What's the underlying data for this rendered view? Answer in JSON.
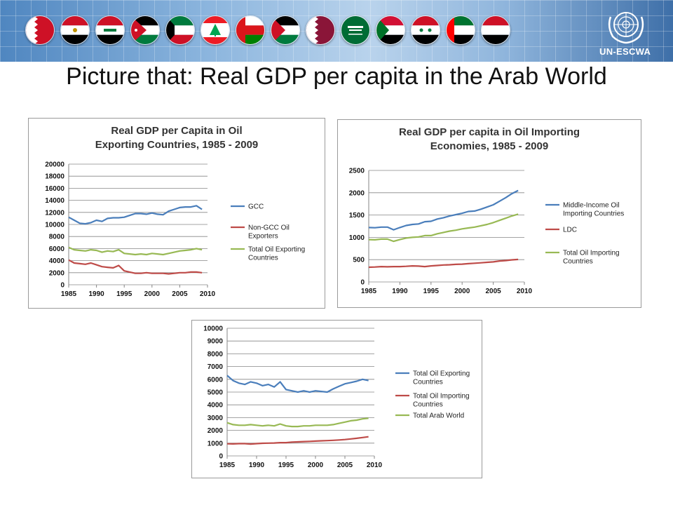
{
  "header": {
    "flags": [
      {
        "country": "Bahrain",
        "icon": "bahrain-flag-icon"
      },
      {
        "country": "Egypt",
        "icon": "egypt-flag-icon"
      },
      {
        "country": "Iraq",
        "icon": "iraq-flag-icon"
      },
      {
        "country": "Jordan",
        "icon": "jordan-flag-icon"
      },
      {
        "country": "Kuwait",
        "icon": "kuwait-flag-icon"
      },
      {
        "country": "Lebanon",
        "icon": "lebanon-flag-icon"
      },
      {
        "country": "Oman",
        "icon": "oman-flag-icon"
      },
      {
        "country": "Palestine",
        "icon": "palestine-flag-icon"
      },
      {
        "country": "Qatar",
        "icon": "qatar-flag-icon"
      },
      {
        "country": "Saudi Arabia",
        "icon": "saudi-arabia-flag-icon"
      },
      {
        "country": "Sudan",
        "icon": "sudan-flag-icon"
      },
      {
        "country": "Syria",
        "icon": "syria-flag-icon"
      },
      {
        "country": "UAE",
        "icon": "uae-flag-icon"
      },
      {
        "country": "Yemen",
        "icon": "yemen-flag-icon"
      }
    ],
    "org_label": "UN-ESCWA",
    "org_icon": "un-emblem-icon"
  },
  "slide": {
    "title": "Picture that: Real GDP per capita in the Arab World"
  },
  "colors": {
    "blue": "#4a7ebb",
    "red": "#be4b48",
    "green": "#98b954"
  },
  "chart_data": [
    {
      "type": "line",
      "title": [
        "Real GDP per Capita in Oil",
        "Exporting Countries, 1985 - 2009"
      ],
      "ylim": [
        0,
        20000
      ],
      "yticks": [
        0,
        2000,
        4000,
        6000,
        8000,
        10000,
        12000,
        14000,
        16000,
        18000,
        20000
      ],
      "xlim": [
        1985,
        2010
      ],
      "xticks": [
        1985,
        1990,
        1995,
        2000,
        2005,
        2010
      ],
      "grid": true,
      "legend_position": "right",
      "x": [
        1985,
        1986,
        1987,
        1988,
        1989,
        1990,
        1991,
        1992,
        1993,
        1994,
        1995,
        1996,
        1997,
        1998,
        1999,
        2000,
        2001,
        2002,
        2003,
        2004,
        2005,
        2006,
        2007,
        2008,
        2009
      ],
      "series": [
        {
          "name": "GCC",
          "color": "#4a7ebb",
          "values": [
            11200,
            10700,
            10200,
            10100,
            10300,
            10700,
            10500,
            11000,
            11100,
            11100,
            11200,
            11500,
            11800,
            11800,
            11700,
            11900,
            11700,
            11600,
            12200,
            12500,
            12800,
            12900,
            12900,
            13100,
            12500
          ]
        },
        {
          "name": "Non-GCC Oil Exporters",
          "color": "#be4b48",
          "values": [
            4100,
            3600,
            3500,
            3400,
            3600,
            3300,
            3000,
            2900,
            2800,
            3200,
            2300,
            2100,
            1900,
            1900,
            2000,
            1900,
            1900,
            1900,
            1800,
            1900,
            2000,
            2000,
            2100,
            2100,
            2000
          ]
        },
        {
          "name": "Total Oil Exporting Countries",
          "color": "#98b954",
          "values": [
            6200,
            5800,
            5700,
            5600,
            5800,
            5700,
            5400,
            5600,
            5500,
            5800,
            5200,
            5100,
            5000,
            5100,
            5000,
            5200,
            5100,
            5000,
            5200,
            5400,
            5600,
            5700,
            5800,
            6000,
            5800
          ]
        }
      ]
    },
    {
      "type": "line",
      "title": [
        "Real GDP per capita in Oil Importing",
        "Economies, 1985 - 2009"
      ],
      "ylim": [
        0,
        2500
      ],
      "yticks": [
        0,
        500,
        1000,
        1500,
        2000,
        2500
      ],
      "xlim": [
        1985,
        2010
      ],
      "xticks": [
        1985,
        1990,
        1995,
        2000,
        2005,
        2010
      ],
      "grid": true,
      "legend_position": "right",
      "x": [
        1985,
        1986,
        1987,
        1988,
        1989,
        1990,
        1991,
        1992,
        1993,
        1994,
        1995,
        1996,
        1997,
        1998,
        1999,
        2000,
        2001,
        2002,
        2003,
        2004,
        2005,
        2006,
        2007,
        2008,
        2009
      ],
      "series": [
        {
          "name": "Middle-Income Oil Importing Countries",
          "color": "#4a7ebb",
          "values": [
            1220,
            1215,
            1230,
            1230,
            1170,
            1220,
            1265,
            1290,
            1300,
            1350,
            1360,
            1410,
            1440,
            1480,
            1510,
            1540,
            1580,
            1590,
            1630,
            1680,
            1730,
            1810,
            1890,
            1980,
            2050
          ]
        },
        {
          "name": "LDC",
          "color": "#be4b48",
          "values": [
            330,
            335,
            345,
            340,
            345,
            345,
            350,
            360,
            355,
            345,
            360,
            370,
            380,
            385,
            395,
            400,
            410,
            420,
            430,
            440,
            450,
            470,
            480,
            495,
            505
          ]
        },
        {
          "name": "Total Oil Importing Countries",
          "color": "#98b954",
          "values": [
            950,
            945,
            960,
            960,
            910,
            950,
            985,
            1000,
            1010,
            1040,
            1040,
            1080,
            1110,
            1140,
            1160,
            1190,
            1210,
            1230,
            1260,
            1290,
            1330,
            1380,
            1430,
            1480,
            1520
          ]
        }
      ]
    },
    {
      "type": "line",
      "title": [],
      "ylim": [
        0,
        10000
      ],
      "yticks": [
        0,
        1000,
        2000,
        3000,
        4000,
        5000,
        6000,
        7000,
        8000,
        9000,
        10000
      ],
      "xlim": [
        1985,
        2010
      ],
      "xticks": [
        1985,
        1990,
        1995,
        2000,
        2005,
        2010
      ],
      "grid": true,
      "legend_position": "right",
      "x": [
        1985,
        1986,
        1987,
        1988,
        1989,
        1990,
        1991,
        1992,
        1993,
        1994,
        1995,
        1996,
        1997,
        1998,
        1999,
        2000,
        2001,
        2002,
        2003,
        2004,
        2005,
        2006,
        2007,
        2008,
        2009
      ],
      "series": [
        {
          "name": "Total Oil Exporting Countries",
          "color": "#4a7ebb",
          "values": [
            6300,
            5900,
            5700,
            5600,
            5800,
            5700,
            5500,
            5600,
            5400,
            5800,
            5200,
            5100,
            5000,
            5100,
            5000,
            5100,
            5050,
            5000,
            5250,
            5450,
            5650,
            5750,
            5850,
            6000,
            5900
          ]
        },
        {
          "name": "Total Oil Importing Countries",
          "color": "#be4b48",
          "values": [
            950,
            940,
            960,
            960,
            930,
            960,
            990,
            1000,
            1010,
            1040,
            1040,
            1080,
            1100,
            1120,
            1140,
            1160,
            1180,
            1200,
            1220,
            1250,
            1280,
            1330,
            1380,
            1440,
            1500
          ]
        },
        {
          "name": "Total Arab World",
          "color": "#98b954",
          "values": [
            2600,
            2450,
            2400,
            2400,
            2450,
            2400,
            2350,
            2400,
            2350,
            2500,
            2350,
            2300,
            2300,
            2350,
            2350,
            2400,
            2400,
            2400,
            2450,
            2550,
            2650,
            2750,
            2800,
            2900,
            2950
          ]
        }
      ]
    }
  ]
}
